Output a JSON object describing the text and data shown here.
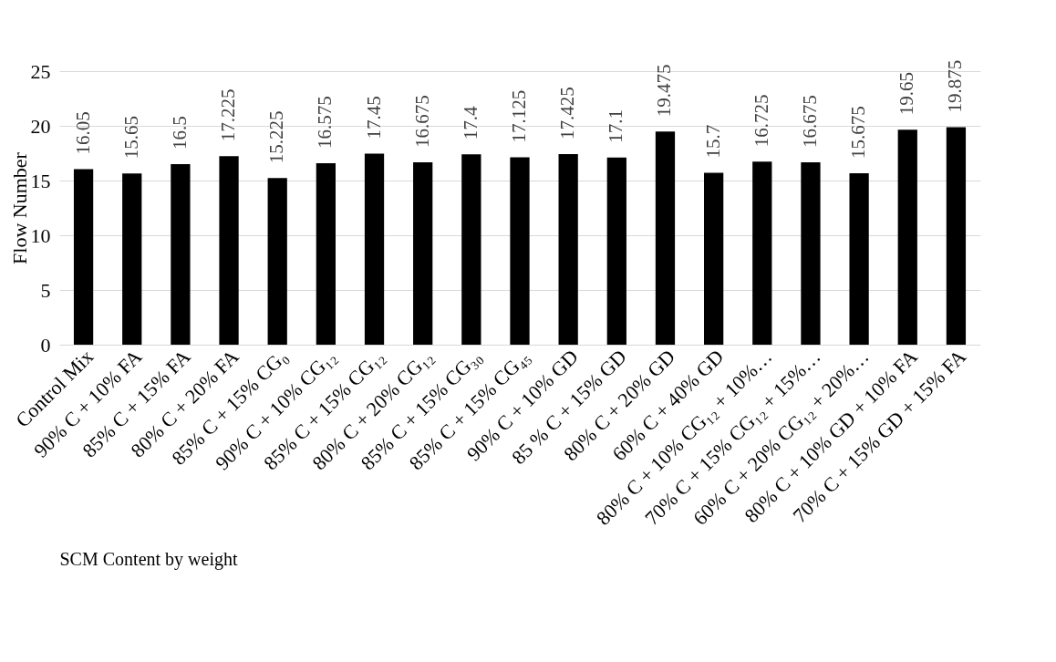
{
  "chart_data": {
    "type": "bar",
    "xlabel": "SCM Content by weight",
    "ylabel": "Flow Number",
    "categories": [
      "Control Mix",
      "90% C + 10% FA",
      "85% C + 15% FA",
      "80% C + 20% FA",
      "85% C + 15% CG₀",
      "90% C + 10% CG₁₂",
      "85% C + 15% CG₁₂",
      "80% C + 20% CG₁₂",
      "85% C + 15% CG₃₀",
      "85% C + 15% CG₄₅",
      "90% C + 10% GD",
      "85 % C + 15% GD",
      "80% C + 20% GD",
      "60% C + 40% GD",
      "80% C + 10% CG₁₂ + 10%…",
      "70% C + 15% CG₁₂ + 15%…",
      "60% C + 20% CG₁₂ + 20%…",
      "80% C + 10% GD + 10% FA",
      "70% C + 15% GD + 15% FA"
    ],
    "values": [
      16.05,
      15.65,
      16.5,
      17.225,
      15.225,
      16.575,
      17.45,
      16.675,
      17.4,
      17.125,
      17.425,
      17.1,
      19.475,
      15.7,
      16.725,
      16.675,
      15.675,
      19.65,
      19.875
    ],
    "color": "#000000",
    "ylim": [
      0,
      25
    ],
    "yticks": [
      0,
      5,
      10,
      15,
      20,
      25
    ],
    "grid": "y",
    "data_labels": true
  }
}
